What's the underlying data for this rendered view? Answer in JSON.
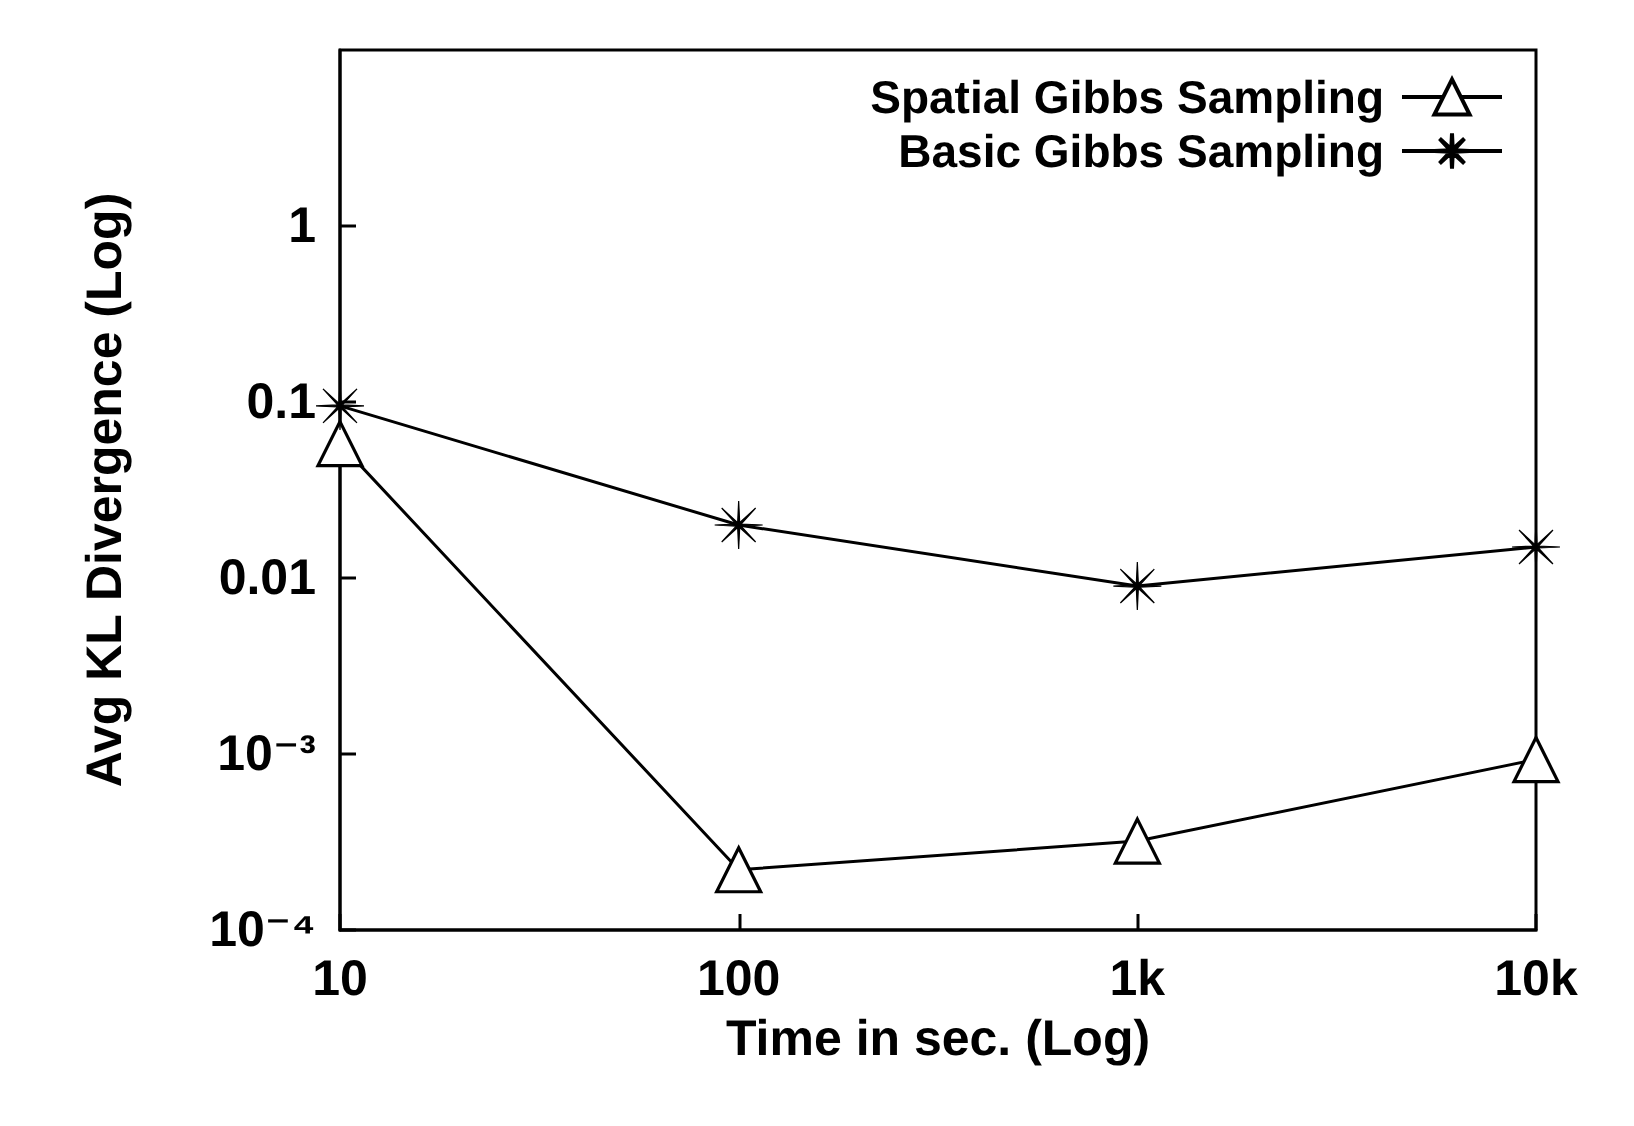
{
  "chart_data": {
    "type": "line",
    "xlabel": "Time in sec. (Log)",
    "ylabel": "Avg KL Divergence (Log)",
    "x": [
      10,
      100,
      1000,
      10000
    ],
    "series": [
      {
        "name": "Spatial Gibbs Sampling",
        "color": "#000000",
        "marker": "triangle",
        "values": [
          0.058,
          0.00022,
          0.00032,
          0.00093
        ]
      },
      {
        "name": "Basic Gibbs Sampling",
        "color": "#000000",
        "marker": "cross",
        "values": [
          0.095,
          0.02,
          0.009,
          0.015
        ]
      }
    ],
    "log": "xy",
    "xlim": [
      10,
      10000
    ],
    "ylim": [
      0.0001,
      10
    ],
    "xticks": [
      10,
      100,
      {
        "value": 1000,
        "label": "1k"
      },
      {
        "value": 10000,
        "label": "10k"
      }
    ],
    "yticks": [
      {
        "value": 0.0001,
        "label": "10⁻⁴"
      },
      {
        "value": 0.001,
        "label": "10⁻³"
      },
      0.01,
      0.1,
      1
    ],
    "grid": false,
    "legend": "top right",
    "line_style": "solid"
  }
}
